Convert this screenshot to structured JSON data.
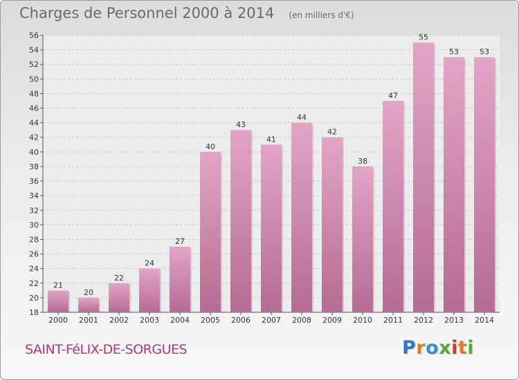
{
  "header": {
    "title": "Charges de Personnel 2000 à 2014",
    "subtitle": "(en milliers d'€)"
  },
  "footer": {
    "commune": "SAINT-FéLIX-DE-SORGUES",
    "logo": "Proxiti"
  },
  "colors": {
    "bar_top": "#e2a5c6",
    "bar_bottom": "#b56b93",
    "commune_text": "#b03a6e",
    "logo_letters": [
      "#2f77c0",
      "#e07a1a",
      "#3a8fd0",
      "#58a935",
      "#d03a2a",
      "#e07a1a",
      "#58a935"
    ]
  },
  "chart_data": {
    "type": "bar",
    "categories": [
      "2000",
      "2001",
      "2002",
      "2003",
      "2004",
      "2005",
      "2006",
      "2007",
      "2008",
      "2009",
      "2010",
      "2011",
      "2012",
      "2013",
      "2014"
    ],
    "values": [
      21,
      20,
      22,
      24,
      27,
      40,
      43,
      41,
      44,
      42,
      38,
      47,
      55,
      53,
      53
    ],
    "ylim": [
      18,
      56
    ],
    "yticks": [
      18,
      20,
      22,
      24,
      26,
      28,
      30,
      32,
      34,
      36,
      38,
      40,
      42,
      44,
      46,
      48,
      50,
      52,
      54,
      56
    ],
    "grid": true,
    "data_labels": true
  }
}
